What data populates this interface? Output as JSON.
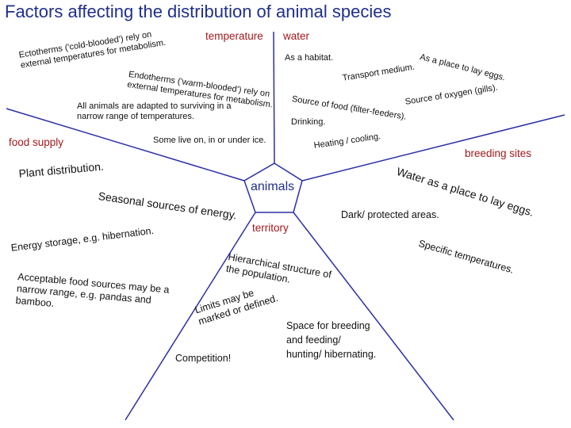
{
  "title": "Factors affecting the distribution of animal species",
  "colors": {
    "title": "#1f2f8c",
    "lines": "#2b2fa6",
    "heading": "#a3191d",
    "center": "#1f2f8c",
    "text": "#111111"
  },
  "center": {
    "label": "animals"
  },
  "temperature": {
    "heading": "temperature",
    "ectotherms": [
      "Ectotherms ('cold-blooded') rely on",
      "external temperatures for metabolism."
    ],
    "endotherms": [
      "Endotherms ('warm-blooded') rely on",
      "external temperatures for metabolism."
    ],
    "adapted": [
      "All animals are adapted to surviving in a",
      "narrow range of temperatures."
    ],
    "ice": "Some live on, in or under ice."
  },
  "water": {
    "heading": "water",
    "habitat": "As a habitat.",
    "transport": "Transport medium.",
    "lay_eggs": "As a place to lay eggs.",
    "oxygen": "Source of oxygen (gills).",
    "food": "Source of food (filter-feeders).",
    "drinking": "Drinking.",
    "heating": "Heating / cooling."
  },
  "food_supply": {
    "heading": "food supply",
    "plant": "Plant distribution.",
    "seasonal": "Seasonal sources of energy.",
    "storage": "Energy storage, e.g. hibernation.",
    "acceptable": [
      "Acceptable food sources may be a",
      "narrow range, e.g. pandas and",
      "bamboo."
    ]
  },
  "breeding_sites": {
    "heading": "breeding sites",
    "water_eggs": "Water as a place to lay eggs.",
    "dark": "Dark/ protected areas.",
    "specific": "Specific temperatures."
  },
  "territory": {
    "heading": "territory",
    "hierarchical": [
      "Hierarchical structure of",
      "the population."
    ],
    "limits": [
      "Limits may be",
      "marked or defined."
    ],
    "space": [
      "Space for breeding",
      "and feeding/",
      "hunting/ hibernating."
    ],
    "competition": "Competition!"
  }
}
